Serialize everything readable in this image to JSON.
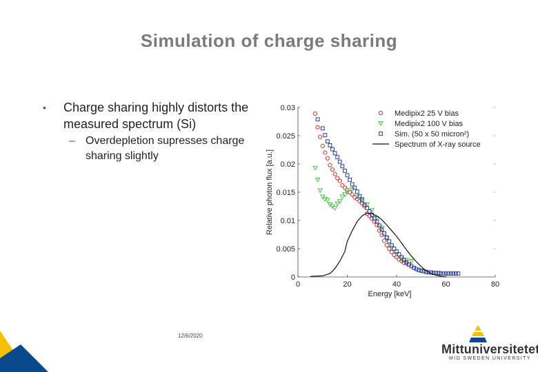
{
  "slide": {
    "title": "Simulation of charge sharing",
    "bullets": [
      {
        "marker": "•",
        "text": "Charge sharing highly distorts the measured spectrum (Si)"
      },
      {
        "marker": "–",
        "text": "Overdepletion supresses charge sharing slightly"
      }
    ],
    "date": "12/6/2020"
  },
  "logo": {
    "name": "Mittuniversitetet",
    "subtitle": "MID SWEDEN UNIVERSITY",
    "colors": [
      "#f5c000",
      "#0a4a8c"
    ]
  },
  "colors": {
    "title": "#7a7a7a",
    "bullet_marker": "#1c6bc0",
    "corner_yellow": "#f5c000",
    "corner_blue": "#0a4a8c"
  },
  "chart_data": {
    "type": "scatter",
    "xlabel": "Energy [keV]",
    "ylabel": "Relative photon flux [a.u.]",
    "xlim": [
      0,
      80
    ],
    "ylim": [
      0,
      0.03
    ],
    "xticks": [
      "0",
      "20",
      "40",
      "60",
      "80"
    ],
    "yticks": [
      "0",
      "0.005",
      "0.01",
      "0.015",
      "0.02",
      "0.025",
      "0.03"
    ],
    "grid": false,
    "legend_position": "top-right",
    "series": [
      {
        "name": "Medipix2 25 V bias",
        "marker": "circle",
        "color": "#d03030",
        "points": [
          [
            7,
            0.0289
          ],
          [
            8,
            0.0265
          ],
          [
            9,
            0.0248
          ],
          [
            10,
            0.0232
          ],
          [
            11,
            0.022
          ],
          [
            12,
            0.021
          ],
          [
            13,
            0.0198
          ],
          [
            14,
            0.019
          ],
          [
            15,
            0.0182
          ],
          [
            16,
            0.0175
          ],
          [
            17,
            0.017
          ],
          [
            18,
            0.0162
          ],
          [
            19,
            0.0158
          ],
          [
            20,
            0.0154
          ],
          [
            21,
            0.015
          ],
          [
            22,
            0.0146
          ],
          [
            23,
            0.0141
          ],
          [
            24,
            0.0138
          ],
          [
            25,
            0.0134
          ],
          [
            26,
            0.013
          ],
          [
            27,
            0.0125
          ],
          [
            28,
            0.0112
          ],
          [
            29,
            0.0108
          ],
          [
            30,
            0.0103
          ],
          [
            31,
            0.0098
          ],
          [
            32,
            0.0092
          ],
          [
            33,
            0.0082
          ],
          [
            34,
            0.0074
          ],
          [
            35,
            0.0064
          ],
          [
            36,
            0.0056
          ],
          [
            37,
            0.005
          ],
          [
            38,
            0.0044
          ],
          [
            39,
            0.0039
          ],
          [
            40,
            0.0035
          ],
          [
            41,
            0.0031
          ],
          [
            42,
            0.0028
          ],
          [
            43,
            0.0025
          ],
          [
            44,
            0.0024
          ],
          [
            45,
            0.0022
          ]
        ]
      },
      {
        "name": "Medipix2 100 V bias",
        "marker": "triangle-down",
        "color": "#4cc04c",
        "points": [
          [
            7,
            0.0193
          ],
          [
            8,
            0.0172
          ],
          [
            9,
            0.0153
          ],
          [
            10,
            0.0142
          ],
          [
            11,
            0.0138
          ],
          [
            12,
            0.0136
          ],
          [
            13,
            0.0128
          ],
          [
            14,
            0.0125
          ],
          [
            15,
            0.0122
          ],
          [
            16,
            0.013
          ],
          [
            17,
            0.0134
          ],
          [
            18,
            0.0142
          ],
          [
            19,
            0.0146
          ],
          [
            20,
            0.015
          ],
          [
            22,
            0.0155
          ],
          [
            24,
            0.0142
          ],
          [
            26,
            0.0138
          ],
          [
            28,
            0.0128
          ],
          [
            30,
            0.0118
          ],
          [
            32,
            0.0104
          ],
          [
            34,
            0.0087
          ],
          [
            36,
            0.0068
          ],
          [
            38,
            0.0052
          ],
          [
            40,
            0.004
          ],
          [
            42,
            0.0032
          ],
          [
            44,
            0.003
          ],
          [
            46,
            0.0028
          ]
        ]
      },
      {
        "name": "Sim. (50 x 50 micron²)",
        "marker": "square",
        "color": "#2a3a9a",
        "points": [
          [
            8,
            0.0279
          ],
          [
            10,
            0.0263
          ],
          [
            11,
            0.0251
          ],
          [
            12,
            0.024
          ],
          [
            13,
            0.0233
          ],
          [
            14,
            0.0226
          ],
          [
            15,
            0.0219
          ],
          [
            16,
            0.0212
          ],
          [
            17,
            0.0204
          ],
          [
            18,
            0.0196
          ],
          [
            19,
            0.0188
          ],
          [
            20,
            0.018
          ],
          [
            21,
            0.0172
          ],
          [
            22,
            0.0164
          ],
          [
            23,
            0.0158
          ],
          [
            24,
            0.0151
          ],
          [
            25,
            0.0143
          ],
          [
            26,
            0.0136
          ],
          [
            27,
            0.0128
          ],
          [
            28,
            0.0122
          ],
          [
            29,
            0.0116
          ],
          [
            30,
            0.011
          ],
          [
            31,
            0.0104
          ],
          [
            32,
            0.0098
          ],
          [
            33,
            0.0091
          ],
          [
            34,
            0.0084
          ],
          [
            35,
            0.0077
          ],
          [
            36,
            0.007
          ],
          [
            37,
            0.0063
          ],
          [
            38,
            0.0056
          ],
          [
            39,
            0.005
          ],
          [
            40,
            0.0045
          ],
          [
            41,
            0.004
          ],
          [
            42,
            0.0035
          ],
          [
            43,
            0.003
          ],
          [
            44,
            0.0026
          ],
          [
            45,
            0.0022
          ],
          [
            46,
            0.0019
          ],
          [
            47,
            0.0016
          ],
          [
            48,
            0.0014
          ],
          [
            49,
            0.0012
          ],
          [
            50,
            0.0011
          ],
          [
            51,
            0.001
          ],
          [
            52,
            0.0009
          ],
          [
            53,
            0.0008
          ],
          [
            54,
            0.0008
          ],
          [
            55,
            0.0007
          ],
          [
            56,
            0.0007
          ],
          [
            57,
            0.0007
          ],
          [
            58,
            0.0006
          ],
          [
            59,
            0.0006
          ],
          [
            60,
            0.0006
          ],
          [
            61,
            0.0006
          ],
          [
            62,
            0.0006
          ],
          [
            63,
            0.0006
          ],
          [
            64,
            0.0006
          ],
          [
            65,
            0.0006
          ]
        ]
      },
      {
        "name": "Spectrum of X-ray source",
        "marker": "line",
        "color": "#111111",
        "points": [
          [
            5,
            0.0001
          ],
          [
            10,
            0.0002
          ],
          [
            13,
            0.0006
          ],
          [
            15,
            0.0015
          ],
          [
            17,
            0.0028
          ],
          [
            19,
            0.0045
          ],
          [
            20,
            0.0063
          ],
          [
            22,
            0.0082
          ],
          [
            24,
            0.0098
          ],
          [
            26,
            0.0108
          ],
          [
            28,
            0.0113
          ],
          [
            30,
            0.0112
          ],
          [
            32,
            0.0108
          ],
          [
            34,
            0.0101
          ],
          [
            36,
            0.0092
          ],
          [
            38,
            0.0082
          ],
          [
            40,
            0.0072
          ],
          [
            42,
            0.006
          ],
          [
            44,
            0.0048
          ],
          [
            46,
            0.0037
          ],
          [
            48,
            0.0027
          ],
          [
            50,
            0.0018
          ],
          [
            52,
            0.0011
          ],
          [
            54,
            0.0006
          ],
          [
            56,
            0.0003
          ],
          [
            58,
            0.0001
          ],
          [
            60,
            0.0
          ]
        ]
      }
    ]
  }
}
